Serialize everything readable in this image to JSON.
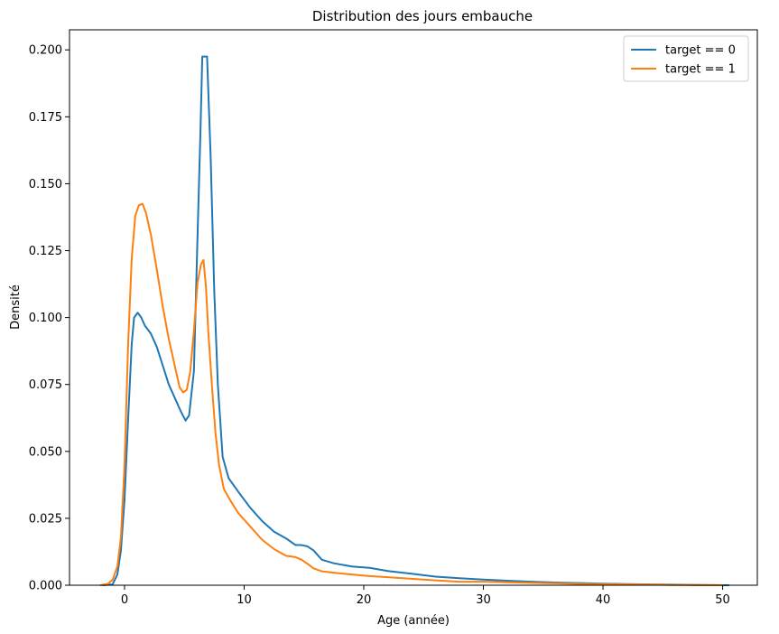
{
  "chart_data": {
    "type": "line",
    "title": "Distribution des jours embauche",
    "xlabel": "Age (année)",
    "ylabel": "Densité",
    "xlim": [
      -4.6,
      52.9
    ],
    "ylim": [
      0,
      0.2075
    ],
    "xticks": [
      0,
      10,
      20,
      30,
      40,
      50
    ],
    "xtick_labels": [
      "0",
      "10",
      "20",
      "30",
      "40",
      "50"
    ],
    "yticks": [
      0,
      0.025,
      0.05,
      0.075,
      0.1,
      0.125,
      0.15,
      0.175,
      0.2
    ],
    "ytick_labels": [
      "0.000",
      "0.025",
      "0.050",
      "0.075",
      "0.100",
      "0.125",
      "0.150",
      "0.175",
      "0.200"
    ],
    "grid": false,
    "legend_position": "top-right",
    "series": [
      {
        "name": "target == 0",
        "color": "#1f77b4",
        "x": [
          -1.8,
          -1.0,
          -0.6,
          -0.3,
          0.0,
          0.3,
          0.6,
          0.8,
          1.1,
          1.4,
          1.7,
          2.2,
          2.7,
          3.2,
          3.7,
          4.2,
          4.7,
          5.1,
          5.4,
          5.8,
          6.1,
          6.35,
          6.5,
          6.7,
          6.9,
          7.2,
          7.5,
          7.8,
          8.2,
          8.7,
          9.5,
          10.5,
          11.5,
          12.5,
          13.5,
          14.3,
          14.8,
          15.3,
          15.8,
          16.5,
          17.5,
          19.0,
          20.5,
          22.0,
          24.0,
          26.0,
          28.0,
          30.0,
          32.0,
          34.0,
          36.0,
          38.0,
          40.0,
          42.0,
          44.0,
          46.0,
          48.0,
          50.5
        ],
        "y": [
          0.0,
          0.0003,
          0.004,
          0.013,
          0.032,
          0.062,
          0.09,
          0.1,
          0.1018,
          0.1,
          0.097,
          0.094,
          0.089,
          0.082,
          0.075,
          0.07,
          0.065,
          0.0615,
          0.0635,
          0.08,
          0.13,
          0.17,
          0.1975,
          0.1975,
          0.1975,
          0.16,
          0.11,
          0.075,
          0.048,
          0.04,
          0.035,
          0.029,
          0.024,
          0.02,
          0.0175,
          0.015,
          0.015,
          0.0145,
          0.013,
          0.0095,
          0.0082,
          0.007,
          0.0065,
          0.0053,
          0.0043,
          0.0032,
          0.0026,
          0.0021,
          0.0017,
          0.0013,
          0.001,
          0.0008,
          0.0006,
          0.0004,
          0.0003,
          0.0002,
          0.0001,
          0.0
        ]
      },
      {
        "name": "target == 1",
        "color": "#ff7f0e",
        "x": [
          -2.0,
          -1.4,
          -1.0,
          -0.6,
          -0.3,
          0.0,
          0.3,
          0.6,
          0.9,
          1.2,
          1.5,
          1.8,
          2.2,
          2.7,
          3.2,
          3.7,
          4.2,
          4.6,
          4.9,
          5.2,
          5.5,
          5.8,
          6.1,
          6.4,
          6.6,
          6.8,
          7.0,
          7.3,
          7.6,
          7.9,
          8.3,
          8.8,
          9.5,
          10.5,
          11.5,
          12.5,
          13.5,
          14.3,
          14.8,
          15.3,
          15.8,
          16.5,
          17.5,
          19.0,
          20.5,
          22.0,
          24.0,
          26.0,
          28.0,
          30.0,
          32.0,
          34.0,
          36.0,
          38.0,
          40.0,
          42.0,
          44.0,
          46.0,
          48.0,
          50.0
        ],
        "y": [
          0.0,
          0.0005,
          0.002,
          0.007,
          0.018,
          0.045,
          0.09,
          0.122,
          0.138,
          0.142,
          0.1425,
          0.139,
          0.131,
          0.118,
          0.104,
          0.092,
          0.082,
          0.074,
          0.072,
          0.073,
          0.08,
          0.095,
          0.113,
          0.12,
          0.1215,
          0.112,
          0.095,
          0.075,
          0.057,
          0.045,
          0.036,
          0.032,
          0.027,
          0.022,
          0.017,
          0.0135,
          0.011,
          0.0105,
          0.0095,
          0.008,
          0.0063,
          0.0052,
          0.0047,
          0.004,
          0.0034,
          0.003,
          0.0024,
          0.0018,
          0.0013,
          0.0013,
          0.0011,
          0.0009,
          0.0007,
          0.0005,
          0.0004,
          0.0003,
          0.0002,
          0.0001,
          5e-05,
          0.0
        ]
      }
    ]
  }
}
